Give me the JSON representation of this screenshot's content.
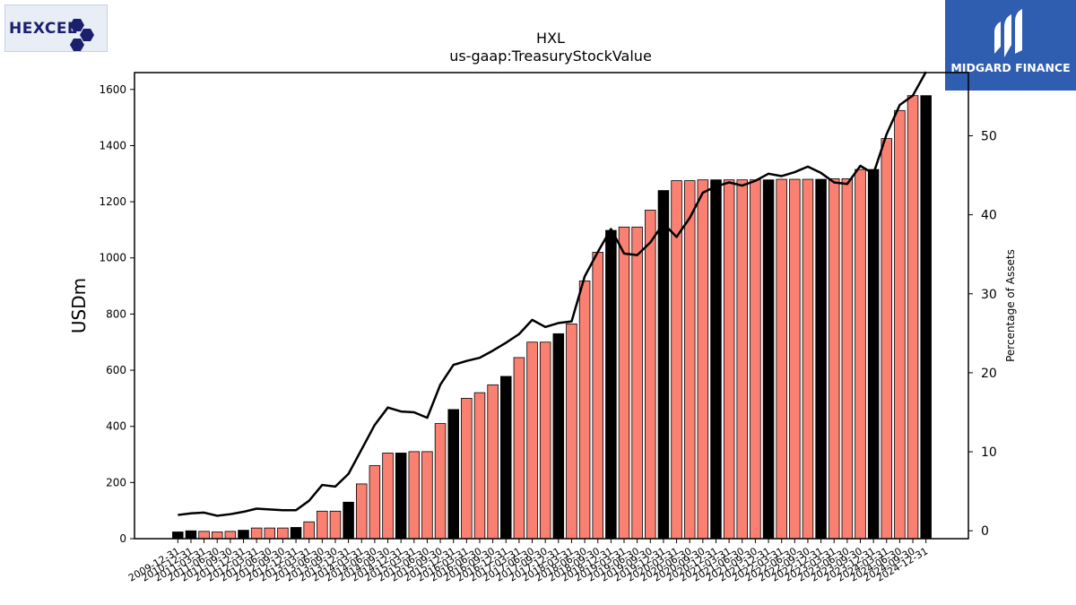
{
  "logos": {
    "left_brand": "HEXCEL",
    "right_brand": "MIDGARD FINANCE"
  },
  "colors": {
    "bar_default": "#fa8072",
    "bar_highlight": "#000000",
    "line": "#000000",
    "logo_right_bg": "#2f5db0",
    "logo_left_text": "#1a1f6e"
  },
  "chart_data": {
    "type": "bar",
    "title": "HXL",
    "subtitle": "us-gaap:TreasuryStockValue",
    "ylabel": "USDm",
    "y2label": "Percentage of Assets",
    "ylim": [
      0,
      1660
    ],
    "y2lim": [
      -1,
      58
    ],
    "yticks": [
      0,
      200,
      400,
      600,
      800,
      1000,
      1200,
      1400,
      1600
    ],
    "y2ticks": [
      0,
      10,
      20,
      30,
      40,
      50
    ],
    "categories": [
      "2009-12-31",
      "2010-12-31",
      "2011-03-31",
      "2011-06-30",
      "2011-09-30",
      "2011-12-31",
      "2012-03-31",
      "2012-06-30",
      "2012-09-30",
      "2012-12-31",
      "2013-03-31",
      "2013-06-30",
      "2013-09-30",
      "2013-12-31",
      "2014-03-31",
      "2014-06-30",
      "2014-09-30",
      "2014-12-31",
      "2015-03-31",
      "2015-06-30",
      "2015-09-30",
      "2015-12-31",
      "2016-03-31",
      "2016-06-30",
      "2016-09-30",
      "2016-12-31",
      "2017-03-31",
      "2017-06-30",
      "2017-09-30",
      "2017-12-31",
      "2018-03-31",
      "2018-06-30",
      "2018-09-30",
      "2018-12-31",
      "2019-03-31",
      "2019-06-30",
      "2019-09-30",
      "2019-12-31",
      "2020-03-31",
      "2020-06-30",
      "2020-09-30",
      "2020-12-31",
      "2021-03-31",
      "2021-06-30",
      "2021-09-30",
      "2021-12-31",
      "2022-03-31",
      "2022-06-30",
      "2022-09-30",
      "2022-12-31",
      "2023-03-31",
      "2023-06-30",
      "2023-09-30",
      "2023-12-31",
      "2024-03-31",
      "2024-06-30",
      "2024-09-30",
      "2024-12-31"
    ],
    "x_tick_labels": [
      "2009-12-31",
      "2010-12-31",
      "2011-03-31",
      "2011-06-30",
      "2011-09-30",
      "2011-12-31",
      "2012-03-31",
      "2012-06-30",
      "2012-09-30",
      "2012-12-31",
      "2013-03-31",
      "2013-06-30",
      "2013-09-30",
      "2013-12-31",
      "2014-03-31",
      "2014-06-30",
      "2014-09-30",
      "2014-12-31",
      "2015-03-31",
      "2015-06-30",
      "2015-09-30",
      "2015-12-31",
      "2016-03-31",
      "2016-06-30",
      "2016-09-30",
      "2016-12-31",
      "2017-03-31",
      "2017-06-30",
      "2017-09-30",
      "2017-12-31",
      "2018-03-31",
      "2018-06-30",
      "2018-09-30",
      "2018-12-31",
      "2019-03-31",
      "2019-06-30",
      "2019-09-30",
      "2019-12-31",
      "2020-03-31",
      "2020-06-30",
      "2020-09-30",
      "2020-12-31",
      "2021-03-31",
      "2021-06-30",
      "2021-09-30",
      "2021-12-31",
      "2022-03-31",
      "2022-06-30",
      "2022-09-30",
      "2022-12-31",
      "2023-03-31",
      "2023-06-30",
      "2023-09-30",
      "2023-12-31",
      "2024-03-31",
      "2024-06-30",
      "2024-09-30",
      "2024-12-31"
    ],
    "series": [
      {
        "values": [
          24,
          28,
          26,
          24,
          26,
          30,
          38,
          38,
          38,
          40,
          60,
          98,
          98,
          130,
          195,
          260,
          305,
          305,
          310,
          310,
          410,
          460,
          500,
          520,
          548,
          578,
          645,
          700,
          700,
          730,
          765,
          918,
          1020,
          1098,
          1110,
          1110,
          1170,
          1240,
          1275,
          1275,
          1278,
          1278,
          1278,
          1278,
          1278,
          1278,
          1280,
          1280,
          1280,
          1280,
          1282,
          1282,
          1315,
          1315,
          1425,
          1525,
          1578,
          1578
        ],
        "highlight": [
          true,
          true,
          false,
          false,
          false,
          true,
          false,
          false,
          false,
          true,
          false,
          false,
          false,
          true,
          false,
          false,
          false,
          true,
          false,
          false,
          false,
          true,
          false,
          false,
          false,
          true,
          false,
          false,
          false,
          true,
          false,
          false,
          false,
          true,
          false,
          false,
          false,
          true,
          false,
          false,
          false,
          true,
          false,
          false,
          false,
          true,
          false,
          false,
          false,
          true,
          false,
          false,
          false,
          true,
          false,
          false,
          false,
          true
        ]
      },
      {
        "axis": "right",
        "type": "line",
        "values": [
          2.0,
          2.2,
          2.3,
          1.9,
          2.1,
          2.4,
          2.8,
          2.7,
          2.6,
          2.6,
          3.8,
          5.8,
          5.6,
          7.2,
          10.3,
          13.4,
          15.6,
          15.1,
          15.0,
          14.3,
          18.5,
          21.0,
          21.5,
          21.9,
          22.8,
          23.8,
          24.9,
          26.7,
          25.8,
          26.3,
          26.5,
          32.2,
          35.3,
          38.2,
          35.1,
          34.9,
          36.5,
          38.9,
          37.2,
          39.6,
          42.8,
          43.6,
          44.1,
          43.7,
          44.3,
          45.2,
          44.9,
          45.4,
          46.1,
          45.3,
          44.1,
          43.9,
          46.2,
          45.2,
          50.2,
          53.9,
          55.1,
          58.1
        ]
      }
    ]
  }
}
